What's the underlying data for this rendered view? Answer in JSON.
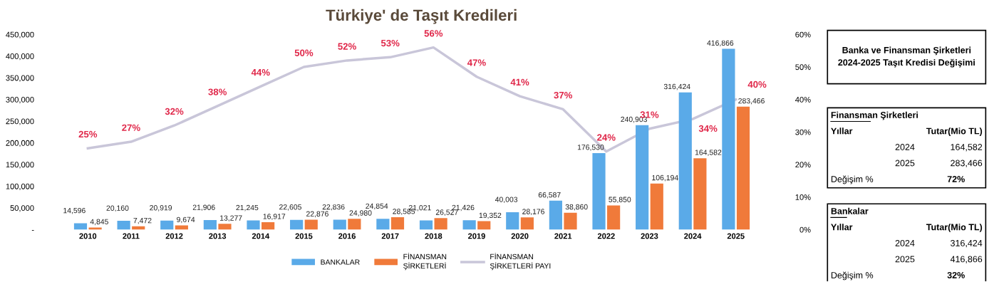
{
  "chart_data": [
    {
      "type": "bar",
      "title": "Türkiye' de Taşıt Kredileri",
      "categories": [
        "2010",
        "2011",
        "2012",
        "2013",
        "2014",
        "2015",
        "2016",
        "2017",
        "2018",
        "2019",
        "2020",
        "2021",
        "2022",
        "2023",
        "2024",
        "2025"
      ],
      "series": [
        {
          "name": "BANKALAR",
          "color": "#5aaae8",
          "values": [
            14596,
            20160,
            20919,
            21906,
            21245,
            22605,
            22836,
            24854,
            21021,
            21426,
            40003,
            66587,
            176530,
            240903,
            316424,
            416866
          ],
          "value_labels": [
            "14,596",
            "20,160",
            "20,919",
            "21,906",
            "21,245",
            "22,605",
            "22,836",
            "24,854",
            "21,021",
            "21,426",
            "40,003",
            "66,587",
            "176,530",
            "240,903",
            "316,424",
            "416,866"
          ]
        },
        {
          "name": "FİNANSMAN\nŞİRKETLERİ",
          "color": "#f07a3a",
          "values": [
            4845,
            7472,
            9674,
            13277,
            16917,
            22876,
            24980,
            28585,
            26527,
            19352,
            28176,
            38860,
            55850,
            106194,
            164582,
            283466
          ],
          "value_labels": [
            "4,845",
            "7,472",
            "9,674",
            "13,277",
            "16,917",
            "22,876",
            "24,980",
            "28,585",
            "26,527",
            "19,352",
            "28,176",
            "38,860",
            "55,850",
            "106,194",
            "164,582",
            "283,466"
          ]
        },
        {
          "name": "FİNANSMAN\nŞİRKETLERİ PAYI",
          "type": "line",
          "axis": "y2",
          "color": "#c9c6d9",
          "values": [
            25,
            27,
            32,
            38,
            44,
            50,
            52,
            53,
            56,
            47,
            41,
            37,
            24,
            31,
            34,
            40
          ],
          "value_labels": [
            "25%",
            "27%",
            "32%",
            "38%",
            "44%",
            "50%",
            "52%",
            "53%",
            "56%",
            "47%",
            "41%",
            "37%",
            "24%",
            "31%",
            "34%",
            "40%"
          ]
        }
      ],
      "ylim": [
        0,
        450000
      ],
      "yticks": [
        {
          "value": 0,
          "label": "-"
        },
        {
          "value": 50000,
          "label": "50,000"
        },
        {
          "value": 100000,
          "label": "100,000"
        },
        {
          "value": 150000,
          "label": "150,000"
        },
        {
          "value": 200000,
          "label": "200,000"
        },
        {
          "value": 250000,
          "label": "250,000"
        },
        {
          "value": 300000,
          "label": "300,000"
        },
        {
          "value": 350000,
          "label": "350,000"
        },
        {
          "value": 400000,
          "label": "400,000"
        },
        {
          "value": 450000,
          "label": "450,000"
        }
      ],
      "y2lim": [
        0,
        60
      ],
      "y2ticks": [
        {
          "value": 0,
          "label": "0%"
        },
        {
          "value": 10,
          "label": "10%"
        },
        {
          "value": 20,
          "label": "20%"
        },
        {
          "value": 30,
          "label": "30%"
        },
        {
          "value": 40,
          "label": "40%"
        },
        {
          "value": 50,
          "label": "50%"
        },
        {
          "value": 60,
          "label": "60%"
        }
      ],
      "grid": false,
      "legend": "bottom",
      "marker": "none",
      "line_style": "solid"
    },
    {
      "type": "other",
      "title": "Banka ve Finansman Şirketleri\n2024-2025 Taşıt Kredisi Değişimi",
      "annotations": [
        "Finansman Şirketleri",
        "Yıllar",
        "Tutar(Mio TL)",
        "2024",
        "164,582",
        "2025",
        "283,466",
        "Değişim %",
        "72%",
        "Bankalar",
        "Yıllar",
        "Tutar(Mio TL)",
        "2024",
        "316,424",
        "2025",
        "416,866",
        "Değişim %",
        "32%"
      ]
    }
  ]
}
